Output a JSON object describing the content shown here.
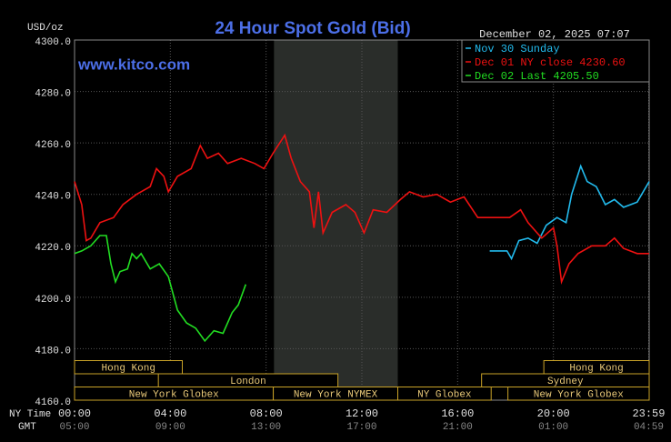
{
  "chart_data": {
    "type": "line",
    "title": "24 Hour Spot Gold (Bid)",
    "watermark": "www.kitco.com",
    "unit_label": "USD/oz",
    "timestamp": "December 02, 2025 07:07",
    "x_row_labels": [
      "NY Time",
      "GMT"
    ],
    "xlim": [
      0,
      24
    ],
    "ylim": [
      4160,
      4300
    ],
    "xticks": [
      {
        "value": 0,
        "label": "00:00"
      },
      {
        "value": 4,
        "label": "04:00"
      },
      {
        "value": 8,
        "label": "08:00"
      },
      {
        "value": 12,
        "label": "12:00"
      },
      {
        "value": 16,
        "label": "16:00"
      },
      {
        "value": 20,
        "label": "20:00"
      },
      {
        "value": 23.98,
        "label": "23:59"
      }
    ],
    "gmt_labels": [
      "05:00",
      "09:00",
      "13:00",
      "17:00",
      "21:00",
      "01:00",
      "04:59"
    ],
    "yticks": [
      {
        "value": 4160,
        "label": "4160.0"
      },
      {
        "value": 4180,
        "label": "4180.0"
      },
      {
        "value": 4200,
        "label": "4200.0"
      },
      {
        "value": 4220,
        "label": "4220.0"
      },
      {
        "value": 4240,
        "label": "4240.0"
      },
      {
        "value": 4260,
        "label": "4260.0"
      },
      {
        "value": 4280,
        "label": "4280.0"
      },
      {
        "value": 4300,
        "label": "4300.0"
      }
    ],
    "grid": true,
    "shaded_range": [
      8.33,
      13.5
    ],
    "session_rows": [
      [
        {
          "label": "Hong Kong",
          "start": 0,
          "end": 4.5
        },
        {
          "label": "Hong Kong",
          "start": 19.6,
          "end": 24
        }
      ],
      [
        {
          "label": "London",
          "start": 3.5,
          "end": 11
        },
        {
          "label": "Sydney",
          "start": 17,
          "end": 24
        }
      ],
      [
        {
          "label": "New York Globex",
          "start": 0,
          "end": 8.3
        },
        {
          "label": "New York NYMEX",
          "start": 8.3,
          "end": 13.5
        },
        {
          "label": "NY Globex",
          "start": 13.5,
          "end": 17.4
        },
        {
          "label": "New York Globex",
          "start": 18.1,
          "end": 24
        }
      ]
    ],
    "series": [
      {
        "name": "Nov 30 Sunday",
        "color": "#22bbee",
        "x": [
          17.34,
          18.06,
          18.25,
          18.56,
          18.94,
          19.32,
          19.7,
          20.15,
          20.53,
          20.76,
          21.14,
          21.41,
          21.79,
          22.17,
          22.55,
          22.93,
          23.5,
          24
        ],
        "values": [
          4218,
          4218,
          4215,
          4222,
          4223,
          4221,
          4228,
          4231,
          4229,
          4240,
          4251,
          4245,
          4243,
          4236,
          4238,
          4235,
          4237,
          4245
        ]
      },
      {
        "name": "Dec 01 NY close 4230.60",
        "color": "#ee1111",
        "x": [
          0,
          0.3,
          0.49,
          0.68,
          1.06,
          1.63,
          2.02,
          2.59,
          3.16,
          3.42,
          3.73,
          3.92,
          4.3,
          4.87,
          5.25,
          5.55,
          6.01,
          6.39,
          6.96,
          7.53,
          7.91,
          8.29,
          8.78,
          9.05,
          9.43,
          9.81,
          10,
          10.19,
          10.38,
          10.76,
          11.33,
          11.71,
          12.09,
          12.47,
          13.04,
          13.61,
          13.99,
          14.56,
          15.13,
          15.7,
          16.27,
          16.84,
          18.17,
          18.63,
          18.94,
          19.51,
          20,
          20.15,
          20.34,
          20.65,
          21.03,
          21.6,
          22.17,
          22.55,
          22.93,
          23.5,
          24
        ],
        "values": [
          4245,
          4236,
          4222,
          4223,
          4229,
          4231,
          4236,
          4240,
          4243,
          4250,
          4247,
          4241,
          4247,
          4250,
          4259,
          4254,
          4256,
          4252,
          4254,
          4252,
          4250,
          4256,
          4263,
          4254,
          4245,
          4241,
          4227,
          4241,
          4225,
          4233,
          4236,
          4233,
          4225,
          4234,
          4233,
          4238,
          4241,
          4239,
          4240,
          4237,
          4239,
          4231,
          4231,
          4234,
          4229,
          4223,
          4227,
          4220,
          4206,
          4213,
          4217,
          4220,
          4220,
          4223,
          4219,
          4217,
          4217
        ]
      },
      {
        "name": "Dec 02 Last 4205.50",
        "color": "#22dd22",
        "x": [
          0,
          0.3,
          0.68,
          1.06,
          1.33,
          1.52,
          1.71,
          1.9,
          2.21,
          2.4,
          2.59,
          2.78,
          3.16,
          3.54,
          3.92,
          4.3,
          4.68,
          5.06,
          5.44,
          5.82,
          6.2,
          6.58,
          6.84,
          7.15
        ],
        "values": [
          4217,
          4218,
          4220,
          4224,
          4224,
          4213,
          4206,
          4210,
          4211,
          4217,
          4215,
          4217,
          4211,
          4213,
          4208,
          4195,
          4190,
          4188,
          4183,
          4187,
          4186,
          4194,
          4197,
          4205
        ]
      }
    ]
  }
}
